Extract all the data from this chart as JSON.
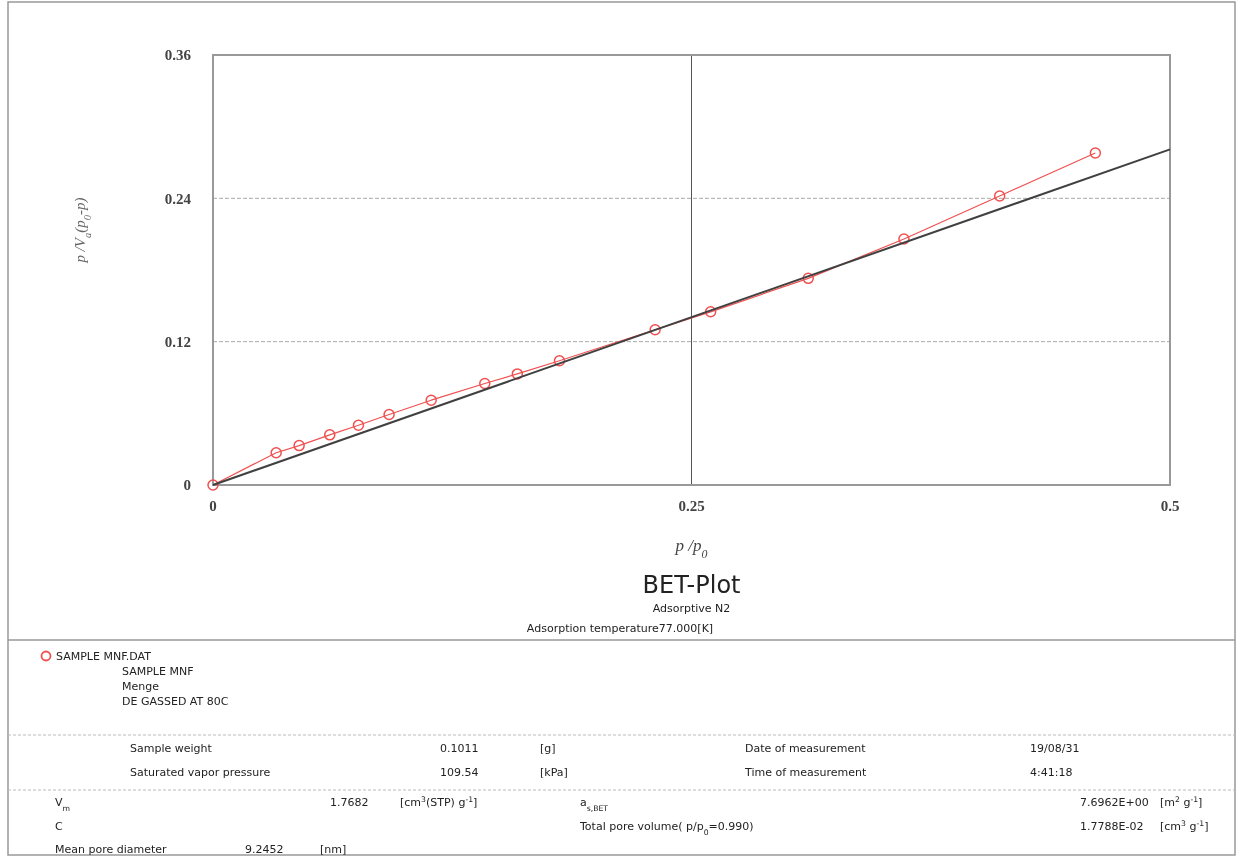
{
  "chart_data": {
    "type": "line",
    "title": "BET-Plot",
    "subtitle": "Adsorptive N2",
    "xlabel": "p /p$_{0}$",
    "ylabel": "p /V$_{a}$(p$_{0}$-p)",
    "xlim": [
      0,
      0.5
    ],
    "xticks": [
      0,
      0.25,
      0.5
    ],
    "ylim": [
      0,
      0.36
    ],
    "yticks": [
      0,
      0.12,
      0.24,
      0.36
    ],
    "grid": "y",
    "ref_lines": [
      {
        "axis": "x",
        "value": 0.25,
        "color": "#555555",
        "line_style": "solid"
      }
    ],
    "legend": "bottom",
    "marker": "circle",
    "line_style": "solid",
    "series": [
      {
        "name": "SAMPLE MNF.DAT",
        "color": "#f05050",
        "x": [
          0,
          0.033,
          0.045,
          0.061,
          0.076,
          0.092,
          0.114,
          0.142,
          0.159,
          0.181,
          0.231,
          0.26,
          0.311,
          0.361,
          0.411,
          0.461
        ],
        "values": [
          0,
          0.027,
          0.033,
          0.042,
          0.05,
          0.059,
          0.071,
          0.085,
          0.093,
          0.104,
          0.13,
          0.145,
          0.173,
          0.206,
          0.242,
          0.278
        ]
      },
      {
        "type": "line",
        "color": "#404040",
        "marker": "none",
        "x": [
          0,
          0.5
        ],
        "values": [
          0,
          0.281
        ]
      }
    ],
    "annotations": [
      "Adsorption temperature77.000[K]",
      "SAMPLE MNF",
      "Menge",
      "DE GASSED AT 80C",
      "Sample weight",
      "0.1011",
      "[g]",
      "Date of measurement",
      "19/08/31",
      "Saturated vapor pressure",
      "109.54",
      "[kPa]",
      "Time of measurement",
      "4:41:18",
      "V$_{m}$",
      "1.7682",
      "[cm$^{3}$(STP) g$^{-1}$]",
      "a$_{s,BET}$",
      "7.6962E+00",
      "[m$^{2}$ g$^{-1}$]",
      "C",
      "Total pore volume( p/p$_{0}$=0.990)",
      "1.7788E-02",
      "[cm$^{3}$ g$^{-1}$]",
      "Mean pore diameter",
      "9.2452",
      "[nm]"
    ]
  }
}
